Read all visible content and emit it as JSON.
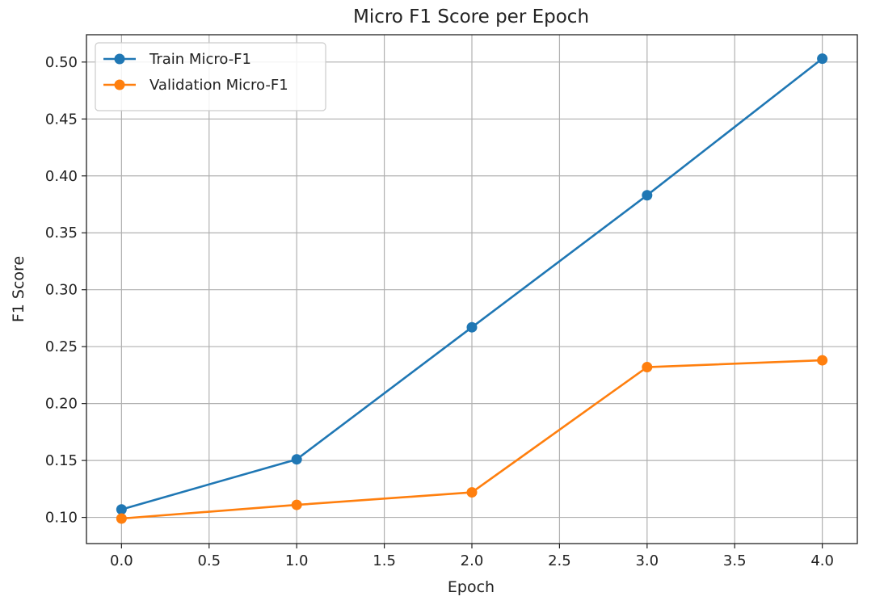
{
  "chart_data": {
    "type": "line",
    "title": "Micro F1 Score per Epoch",
    "xlabel": "Epoch",
    "ylabel": "F1 Score",
    "x": [
      0.0,
      1.0,
      2.0,
      3.0,
      4.0
    ],
    "xlim": [
      -0.2,
      4.2
    ],
    "ylim": [
      0.077,
      0.524
    ],
    "x_ticks": [
      "0.0",
      "0.5",
      "1.0",
      "1.5",
      "2.0",
      "2.5",
      "3.0",
      "3.5",
      "4.0"
    ],
    "x_tick_values": [
      0.0,
      0.5,
      1.0,
      1.5,
      2.0,
      2.5,
      3.0,
      3.5,
      4.0
    ],
    "y_ticks": [
      "0.10",
      "0.15",
      "0.20",
      "0.25",
      "0.30",
      "0.35",
      "0.40",
      "0.45",
      "0.50"
    ],
    "y_tick_values": [
      0.1,
      0.15,
      0.2,
      0.25,
      0.3,
      0.35,
      0.4,
      0.45,
      0.5
    ],
    "grid": true,
    "legend_position": "upper-left",
    "series": [
      {
        "name": "Train Micro-F1",
        "color": "#1f77b4",
        "marker": "circle",
        "values": [
          0.107,
          0.151,
          0.267,
          0.383,
          0.503
        ]
      },
      {
        "name": "Validation Micro-F1",
        "color": "#ff7f0e",
        "marker": "circle",
        "values": [
          0.099,
          0.111,
          0.122,
          0.232,
          0.238
        ]
      }
    ]
  }
}
